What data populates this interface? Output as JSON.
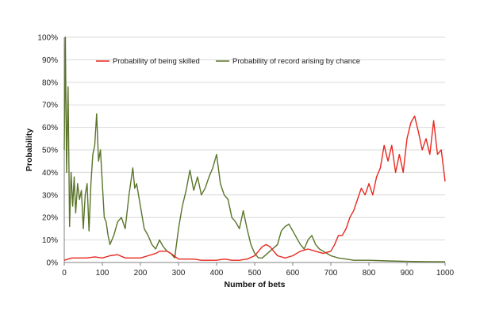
{
  "chart_data": {
    "type": "line",
    "title": "",
    "xlabel": "Number of bets",
    "ylabel": "Probability",
    "xlim": [
      0,
      1000
    ],
    "ylim": [
      0,
      100
    ],
    "x_ticks": [
      "0",
      "100",
      "200",
      "300",
      "400",
      "500",
      "600",
      "700",
      "800",
      "900",
      "1000"
    ],
    "y_ticks": [
      "0%",
      "10%",
      "20%",
      "30%",
      "40%",
      "50%",
      "60%",
      "70%",
      "80%",
      "90%",
      "100%"
    ],
    "grid": "horizontal",
    "legend_position": "top",
    "series": [
      {
        "name": "Probability of being skilled",
        "color": "#e8281e",
        "x": [
          0,
          10,
          20,
          40,
          60,
          80,
          100,
          120,
          140,
          160,
          180,
          200,
          220,
          240,
          250,
          260,
          270,
          280,
          300,
          320,
          340,
          360,
          380,
          400,
          420,
          440,
          460,
          480,
          500,
          510,
          520,
          530,
          540,
          550,
          560,
          580,
          600,
          620,
          640,
          660,
          680,
          700,
          710,
          720,
          730,
          740,
          750,
          760,
          770,
          780,
          790,
          800,
          810,
          820,
          830,
          840,
          850,
          860,
          870,
          880,
          890,
          900,
          910,
          920,
          930,
          940,
          950,
          960,
          970,
          980,
          990,
          1000
        ],
        "y": [
          1,
          1.5,
          2,
          2,
          2,
          2.5,
          2,
          3,
          3.5,
          2,
          2,
          2,
          3,
          4,
          5,
          5,
          5,
          4,
          1.5,
          1.5,
          1.5,
          1,
          1,
          1,
          1.5,
          1,
          1,
          1.5,
          3,
          5,
          7,
          8,
          7,
          5,
          3,
          2,
          3,
          5,
          6,
          5,
          4,
          5,
          8,
          12,
          12,
          15,
          20,
          23,
          28,
          33,
          30,
          35,
          30,
          38,
          42,
          52,
          45,
          52,
          40,
          48,
          40,
          55,
          62,
          65,
          58,
          50,
          55,
          48,
          63,
          48,
          50,
          36
        ]
      },
      {
        "name": "Probability of record arising by chance",
        "color": "#5a7429",
        "x": [
          0,
          3,
          6,
          10,
          14,
          18,
          22,
          26,
          30,
          35,
          40,
          45,
          50,
          55,
          60,
          65,
          70,
          75,
          80,
          85,
          90,
          95,
          100,
          105,
          110,
          115,
          120,
          125,
          130,
          140,
          150,
          160,
          170,
          180,
          185,
          190,
          200,
          210,
          220,
          230,
          240,
          250,
          260,
          270,
          280,
          290,
          300,
          310,
          320,
          330,
          340,
          350,
          360,
          370,
          380,
          390,
          400,
          410,
          420,
          430,
          440,
          450,
          460,
          470,
          480,
          490,
          500,
          510,
          520,
          540,
          560,
          570,
          580,
          590,
          600,
          610,
          620,
          630,
          640,
          650,
          660,
          670,
          680,
          690,
          700,
          720,
          740,
          760,
          780,
          800,
          850,
          900,
          950,
          1000
        ],
        "y": [
          50,
          100,
          40,
          78,
          16,
          40,
          25,
          38,
          22,
          35,
          28,
          32,
          15,
          30,
          35,
          14,
          35,
          48,
          52,
          66,
          45,
          50,
          35,
          20,
          18,
          12,
          8,
          10,
          12,
          18,
          20,
          15,
          30,
          42,
          33,
          35,
          25,
          15,
          12,
          8,
          6,
          10,
          7,
          5,
          4,
          2,
          15,
          25,
          32,
          41,
          32,
          38,
          30,
          33,
          38,
          42,
          48,
          35,
          30,
          28,
          20,
          18,
          15,
          23,
          15,
          8,
          4,
          2,
          2,
          5,
          8,
          14,
          16,
          17,
          14,
          11,
          8,
          6,
          10,
          12,
          8,
          6,
          5,
          4,
          3,
          2,
          1.5,
          1,
          1,
          1,
          0.7,
          0.5,
          0.4,
          0.3
        ]
      }
    ]
  }
}
